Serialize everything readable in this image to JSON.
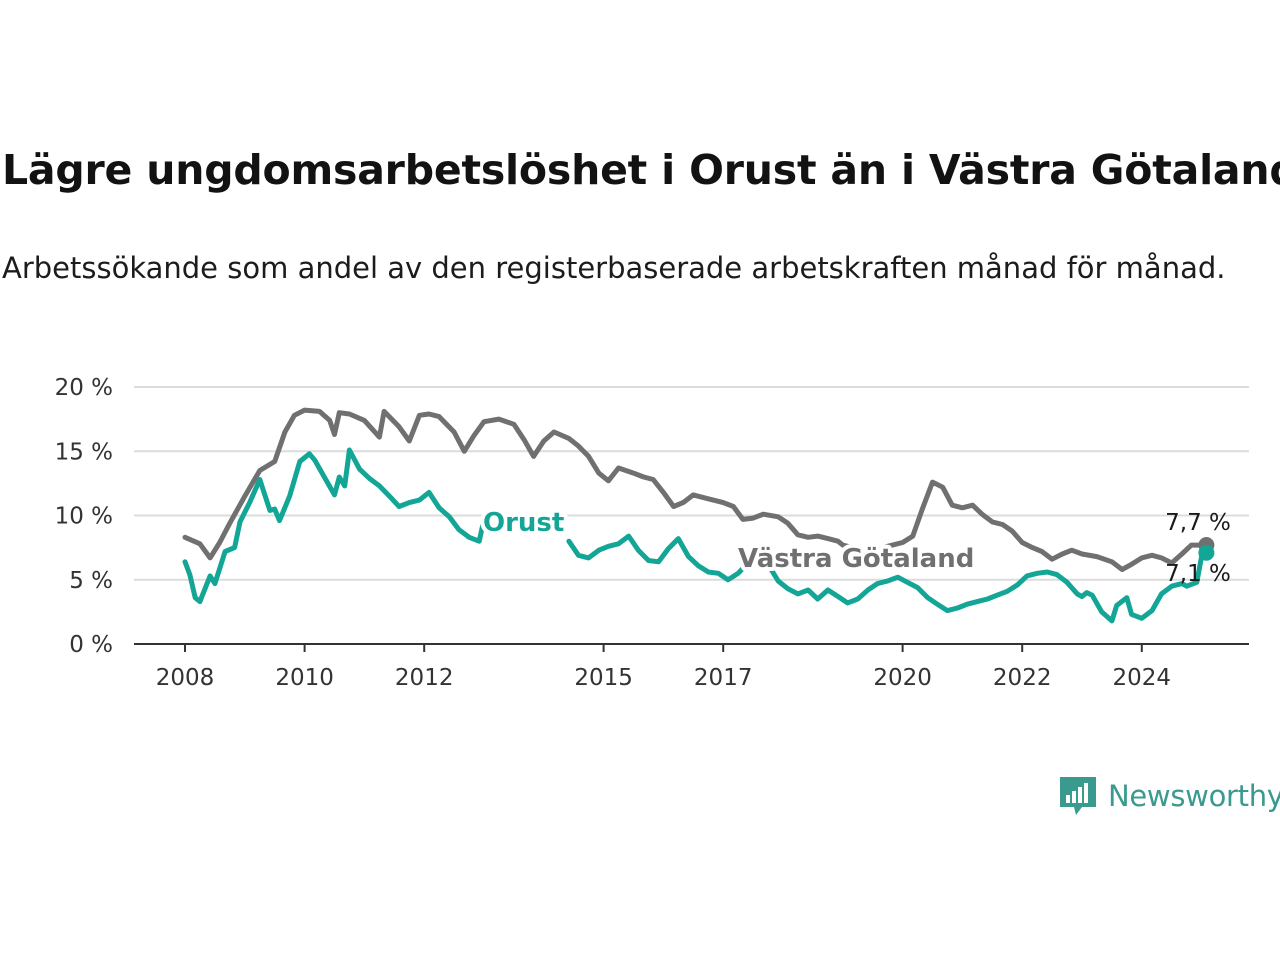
{
  "title": "Lägre ungdomsarbetslöshet i Orust än i Västra Götaland",
  "subtitle": "Arbetssökande som andel av den registerbaserade arbetskraften månad för månad.",
  "brand": {
    "name": "Newsworthy",
    "color": "#3a9a8e"
  },
  "chart_data": {
    "type": "line",
    "title": "Lägre ungdomsarbetslöshet i Orust än i Västra Götaland",
    "subtitle": "Arbetssökande som andel av den registerbaserade arbetskraften månad för månad.",
    "ylim": [
      0,
      20
    ],
    "yticks": [
      0,
      5,
      10,
      15,
      20
    ],
    "ytick_labels": [
      "0 %",
      "5 %",
      "10 %",
      "15 %",
      "20 %"
    ],
    "xticks": [
      2008,
      2010,
      2012,
      2015,
      2017,
      2020,
      2022,
      2024
    ],
    "grid": "horizontal",
    "legend": "inline labels",
    "series": [
      {
        "name": "Västra Götaland",
        "color": "#707070",
        "end_label": "7,7 %",
        "points": [
          [
            2008.0,
            8.3
          ],
          [
            2008.25,
            7.8
          ],
          [
            2008.42,
            6.7
          ],
          [
            2008.58,
            7.9
          ],
          [
            2008.75,
            9.4
          ],
          [
            2009.0,
            11.5
          ],
          [
            2009.25,
            13.5
          ],
          [
            2009.5,
            14.2
          ],
          [
            2009.67,
            16.5
          ],
          [
            2009.83,
            17.8
          ],
          [
            2010.0,
            18.2
          ],
          [
            2010.25,
            18.1
          ],
          [
            2010.42,
            17.4
          ],
          [
            2010.5,
            16.3
          ],
          [
            2010.58,
            18.0
          ],
          [
            2010.75,
            17.9
          ],
          [
            2011.0,
            17.4
          ],
          [
            2011.25,
            16.1
          ],
          [
            2011.33,
            18.1
          ],
          [
            2011.58,
            16.9
          ],
          [
            2011.75,
            15.8
          ],
          [
            2011.92,
            17.8
          ],
          [
            2012.08,
            17.9
          ],
          [
            2012.25,
            17.7
          ],
          [
            2012.5,
            16.5
          ],
          [
            2012.67,
            15.0
          ],
          [
            2012.83,
            16.2
          ],
          [
            2013.0,
            17.3
          ],
          [
            2013.25,
            17.5
          ],
          [
            2013.5,
            17.1
          ],
          [
            2013.67,
            15.9
          ],
          [
            2013.83,
            14.6
          ],
          [
            2014.0,
            15.8
          ],
          [
            2014.17,
            16.5
          ],
          [
            2014.42,
            16.0
          ],
          [
            2014.58,
            15.4
          ],
          [
            2014.75,
            14.6
          ],
          [
            2014.92,
            13.3
          ],
          [
            2015.08,
            12.7
          ],
          [
            2015.25,
            13.7
          ],
          [
            2015.5,
            13.3
          ],
          [
            2015.67,
            13.0
          ],
          [
            2015.83,
            12.8
          ],
          [
            2016.0,
            11.8
          ],
          [
            2016.17,
            10.7
          ],
          [
            2016.33,
            11.0
          ],
          [
            2016.5,
            11.6
          ],
          [
            2016.75,
            11.3
          ],
          [
            2017.0,
            11.0
          ],
          [
            2017.17,
            10.7
          ],
          [
            2017.33,
            9.7
          ],
          [
            2017.5,
            9.8
          ],
          [
            2017.67,
            10.1
          ],
          [
            2017.92,
            9.9
          ],
          [
            2018.08,
            9.4
          ],
          [
            2018.25,
            8.5
          ],
          [
            2018.42,
            8.3
          ],
          [
            2018.58,
            8.4
          ],
          [
            2018.75,
            8.2
          ],
          [
            2018.92,
            8.0
          ],
          [
            2019.0,
            7.7
          ],
          [
            2019.25,
            7.4
          ],
          [
            2019.5,
            7.2
          ],
          [
            2019.75,
            7.6
          ],
          [
            2020.0,
            7.9
          ],
          [
            2020.17,
            8.4
          ],
          [
            2020.33,
            10.5
          ],
          [
            2020.5,
            12.6
          ],
          [
            2020.67,
            12.2
          ],
          [
            2020.83,
            10.8
          ],
          [
            2021.0,
            10.6
          ],
          [
            2021.17,
            10.8
          ],
          [
            2021.33,
            10.1
          ],
          [
            2021.5,
            9.5
          ],
          [
            2021.67,
            9.3
          ],
          [
            2021.83,
            8.8
          ],
          [
            2022.0,
            7.9
          ],
          [
            2022.17,
            7.5
          ],
          [
            2022.33,
            7.2
          ],
          [
            2022.5,
            6.6
          ],
          [
            2022.67,
            7.0
          ],
          [
            2022.83,
            7.3
          ],
          [
            2023.0,
            7.0
          ],
          [
            2023.25,
            6.8
          ],
          [
            2023.5,
            6.4
          ],
          [
            2023.67,
            5.8
          ],
          [
            2023.83,
            6.2
          ],
          [
            2024.0,
            6.7
          ],
          [
            2024.17,
            6.9
          ],
          [
            2024.33,
            6.7
          ],
          [
            2024.5,
            6.3
          ],
          [
            2024.67,
            7.0
          ],
          [
            2024.83,
            7.7
          ],
          [
            2025.08,
            7.7
          ]
        ]
      },
      {
        "name": "Orust",
        "color": "#13a696",
        "end_label": "7,1 %",
        "points": [
          [
            2008.0,
            6.4
          ],
          [
            2008.08,
            5.4
          ],
          [
            2008.17,
            3.6
          ],
          [
            2008.25,
            3.3
          ],
          [
            2008.42,
            5.3
          ],
          [
            2008.5,
            4.7
          ],
          [
            2008.67,
            7.2
          ],
          [
            2008.83,
            7.5
          ],
          [
            2008.92,
            9.5
          ],
          [
            2009.08,
            11.0
          ],
          [
            2009.25,
            12.8
          ],
          [
            2009.42,
            10.4
          ],
          [
            2009.5,
            10.5
          ],
          [
            2009.58,
            9.6
          ],
          [
            2009.75,
            11.5
          ],
          [
            2009.92,
            14.2
          ],
          [
            2010.08,
            14.8
          ],
          [
            2010.17,
            14.3
          ],
          [
            2010.33,
            13.0
          ],
          [
            2010.5,
            11.6
          ],
          [
            2010.58,
            13.0
          ],
          [
            2010.67,
            12.3
          ],
          [
            2010.75,
            15.1
          ],
          [
            2010.92,
            13.6
          ],
          [
            2011.08,
            12.9
          ],
          [
            2011.25,
            12.3
          ],
          [
            2011.42,
            11.5
          ],
          [
            2011.58,
            10.7
          ],
          [
            2011.75,
            11.0
          ],
          [
            2011.92,
            11.2
          ],
          [
            2012.08,
            11.8
          ],
          [
            2012.25,
            10.6
          ],
          [
            2012.42,
            9.9
          ],
          [
            2012.58,
            8.9
          ],
          [
            2012.75,
            8.3
          ],
          [
            2012.92,
            8.0
          ],
          [
            2013.0,
            9.7
          ],
          [
            2013.17,
            10.2
          ],
          [
            2014.42,
            8.0
          ],
          [
            2014.58,
            6.9
          ],
          [
            2014.75,
            6.7
          ],
          [
            2014.92,
            7.3
          ],
          [
            2015.08,
            7.6
          ],
          [
            2015.25,
            7.8
          ],
          [
            2015.42,
            8.4
          ],
          [
            2015.58,
            7.3
          ],
          [
            2015.75,
            6.5
          ],
          [
            2015.92,
            6.4
          ],
          [
            2016.08,
            7.4
          ],
          [
            2016.25,
            8.2
          ],
          [
            2016.42,
            6.8
          ],
          [
            2016.58,
            6.1
          ],
          [
            2016.75,
            5.6
          ],
          [
            2016.92,
            5.5
          ],
          [
            2017.08,
            5.0
          ],
          [
            2017.25,
            5.5
          ],
          [
            2017.42,
            6.3
          ],
          [
            2017.58,
            6.7
          ],
          [
            2017.75,
            6.2
          ],
          [
            2017.92,
            4.9
          ],
          [
            2018.08,
            4.3
          ],
          [
            2018.25,
            3.9
          ],
          [
            2018.42,
            4.2
          ],
          [
            2018.58,
            3.5
          ],
          [
            2018.75,
            4.2
          ],
          [
            2018.92,
            3.7
          ],
          [
            2019.08,
            3.2
          ],
          [
            2019.25,
            3.5
          ],
          [
            2019.42,
            4.2
          ],
          [
            2019.58,
            4.7
          ],
          [
            2019.75,
            4.9
          ],
          [
            2019.92,
            5.2
          ],
          [
            2020.08,
            4.8
          ],
          [
            2020.25,
            4.4
          ],
          [
            2020.42,
            3.6
          ],
          [
            2020.58,
            3.1
          ],
          [
            2020.75,
            2.6
          ],
          [
            2020.92,
            2.8
          ],
          [
            2021.08,
            3.1
          ],
          [
            2021.25,
            3.3
          ],
          [
            2021.42,
            3.5
          ],
          [
            2021.58,
            3.8
          ],
          [
            2021.75,
            4.1
          ],
          [
            2021.92,
            4.6
          ],
          [
            2022.08,
            5.3
          ],
          [
            2022.25,
            5.5
          ],
          [
            2022.42,
            5.6
          ],
          [
            2022.58,
            5.4
          ],
          [
            2022.75,
            4.8
          ],
          [
            2022.92,
            3.9
          ],
          [
            2023.0,
            3.7
          ],
          [
            2023.08,
            4.0
          ],
          [
            2023.17,
            3.8
          ],
          [
            2023.33,
            2.5
          ],
          [
            2023.5,
            1.8
          ],
          [
            2023.58,
            3.0
          ],
          [
            2023.75,
            3.6
          ],
          [
            2023.83,
            2.3
          ],
          [
            2024.0,
            2.0
          ],
          [
            2024.17,
            2.6
          ],
          [
            2024.33,
            3.9
          ],
          [
            2024.5,
            4.5
          ],
          [
            2024.67,
            4.7
          ],
          [
            2024.75,
            4.5
          ],
          [
            2024.92,
            4.8
          ],
          [
            2025.0,
            6.8
          ],
          [
            2025.08,
            7.1
          ]
        ]
      }
    ]
  }
}
